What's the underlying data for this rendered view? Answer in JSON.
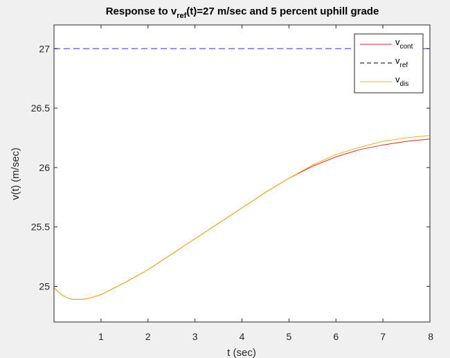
{
  "chart_data": {
    "type": "line",
    "title": {
      "prefix": "Response to v",
      "sub": "ref",
      "suffix": "(t)=27 m/sec and  5 percent uphill grade"
    },
    "xlabel": "t (sec)",
    "ylabel": "v(t) (m/sec)",
    "xlim": [
      0,
      8
    ],
    "ylim": [
      24.7,
      27.2
    ],
    "xticks": [
      1,
      2,
      3,
      4,
      5,
      6,
      7,
      8
    ],
    "yticks": [
      25,
      25.5,
      26,
      26.5,
      27
    ],
    "grid": false,
    "legend_position": "top-right",
    "x": [
      0,
      0.1,
      0.2,
      0.3,
      0.4,
      0.5,
      0.6,
      0.75,
      1,
      1.25,
      1.5,
      2,
      2.5,
      3,
      3.5,
      4,
      4.5,
      5,
      5.5,
      6,
      6.5,
      7,
      7.5,
      8
    ],
    "series": [
      {
        "name_base": "v",
        "name_sub": "cont",
        "color": "#e0231a",
        "style": "solid",
        "values": [
          24.99,
          24.95,
          24.92,
          24.9,
          24.89,
          24.89,
          24.89,
          24.9,
          24.93,
          24.98,
          25.03,
          25.14,
          25.27,
          25.4,
          25.53,
          25.66,
          25.79,
          25.91,
          26.01,
          26.09,
          26.15,
          26.19,
          26.22,
          26.24
        ]
      },
      {
        "name_base": "v",
        "name_sub": "ref",
        "color": "#6b6bde",
        "style": "dashed",
        "values": [
          27,
          27,
          27,
          27,
          27,
          27,
          27,
          27,
          27,
          27,
          27,
          27,
          27,
          27,
          27,
          27,
          27,
          27,
          27,
          27,
          27,
          27,
          27,
          27
        ]
      },
      {
        "name_base": "v",
        "name_sub": "dis",
        "color": "#edb120",
        "style": "solid",
        "values": [
          24.99,
          24.95,
          24.92,
          24.9,
          24.89,
          24.89,
          24.89,
          24.9,
          24.93,
          24.98,
          25.03,
          25.14,
          25.27,
          25.4,
          25.53,
          25.66,
          25.79,
          25.91,
          26.02,
          26.11,
          26.17,
          26.22,
          26.25,
          26.27
        ]
      }
    ]
  }
}
